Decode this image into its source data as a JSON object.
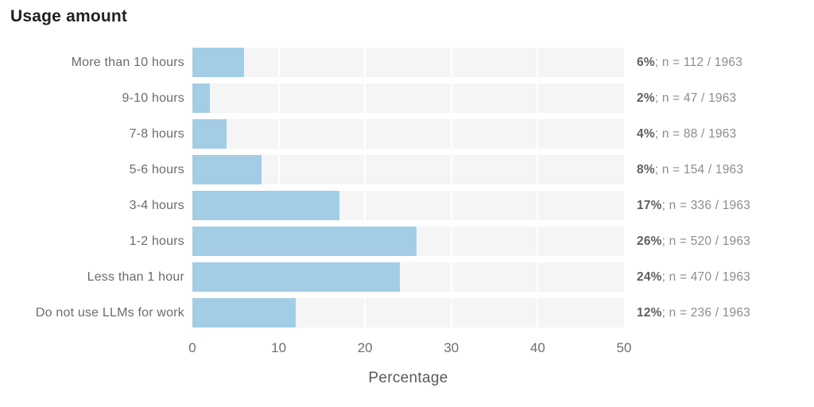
{
  "title": "Usage amount",
  "xlabel": "Percentage",
  "colors": {
    "bar": "#a3cde5",
    "track": "#f5f5f5",
    "gridline": "#ffffff",
    "title_text": "#212121",
    "label_text": "#6b6b6b",
    "annotation_pct": "#5f5f5f",
    "annotation_note": "#8c8c8c"
  },
  "rows": [
    {
      "label": "More than 10 hours",
      "value": 6,
      "pct": "6%",
      "note": "; n = 112 / 1963"
    },
    {
      "label": "9-10 hours",
      "value": 2,
      "pct": "2%",
      "note": "; n = 47 / 1963"
    },
    {
      "label": "7-8 hours",
      "value": 4,
      "pct": "4%",
      "note": "; n = 88 / 1963"
    },
    {
      "label": "5-6 hours",
      "value": 8,
      "pct": "8%",
      "note": "; n = 154 / 1963"
    },
    {
      "label": "3-4 hours",
      "value": 17,
      "pct": "17%",
      "note": "; n = 336 / 1963"
    },
    {
      "label": "1-2 hours",
      "value": 26,
      "pct": "26%",
      "note": "; n = 520 / 1963"
    },
    {
      "label": "Less than 1 hour",
      "value": 24,
      "pct": "24%",
      "note": "; n = 470 / 1963"
    },
    {
      "label": "Do not use LLMs for work",
      "value": 12,
      "pct": "12%",
      "note": "; n = 236 / 1963"
    }
  ],
  "chart_data": {
    "type": "bar",
    "orientation": "horizontal",
    "title": "Usage amount",
    "xlabel": "Percentage",
    "ylabel": "",
    "xlim": [
      0,
      50
    ],
    "xticks": [
      0,
      10,
      20,
      30,
      40,
      50
    ],
    "grid": true,
    "legend": false,
    "categories": [
      "More than 10 hours",
      "9-10 hours",
      "7-8 hours",
      "5-6 hours",
      "3-4 hours",
      "1-2 hours",
      "Less than 1 hour",
      "Do not use LLMs for work"
    ],
    "values": [
      6,
      2,
      4,
      8,
      17,
      26,
      24,
      12
    ],
    "counts": [
      112,
      47,
      88,
      154,
      336,
      520,
      470,
      236
    ],
    "total_n": 1963,
    "annotations": [
      "6%; n = 112 / 1963",
      "2%; n = 47 / 1963",
      "4%; n = 88 / 1963",
      "8%; n = 154 / 1963",
      "17%; n = 336 / 1963",
      "26%; n = 520 / 1963",
      "24%; n = 470 / 1963",
      "12%; n = 236 / 1963"
    ]
  }
}
